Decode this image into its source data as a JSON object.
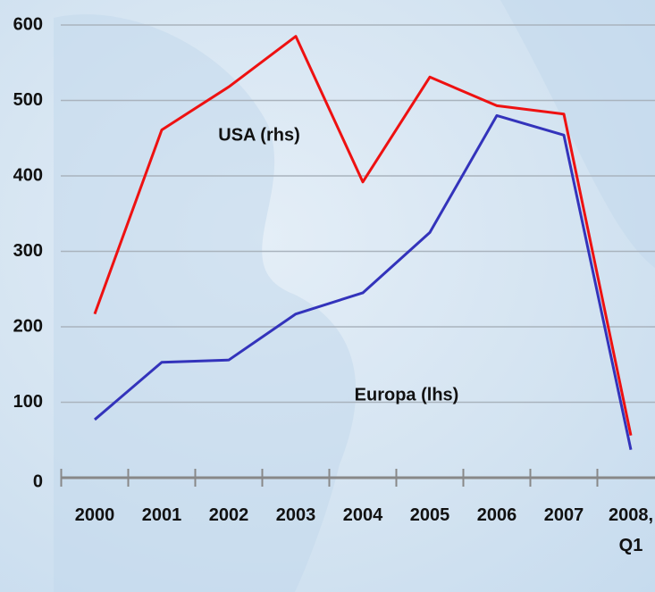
{
  "chart_data": {
    "type": "line",
    "categories": [
      "2000",
      "2001",
      "2002",
      "2003",
      "2004",
      "2005",
      "2006",
      "2007",
      "2008, Q1"
    ],
    "series": [
      {
        "name": "USA (rhs)",
        "color": "#ee1111",
        "values": [
          217,
          461,
          518,
          585,
          392,
          531,
          493,
          482,
          56
        ]
      },
      {
        "name": "Europa (lhs)",
        "color": "#3333bb",
        "values": [
          77,
          153,
          156,
          217,
          245,
          325,
          480,
          454,
          37
        ]
      }
    ],
    "ylim": [
      0,
      600
    ],
    "yticks": [
      0,
      100,
      200,
      300,
      400,
      500,
      600
    ],
    "grid": true
  }
}
